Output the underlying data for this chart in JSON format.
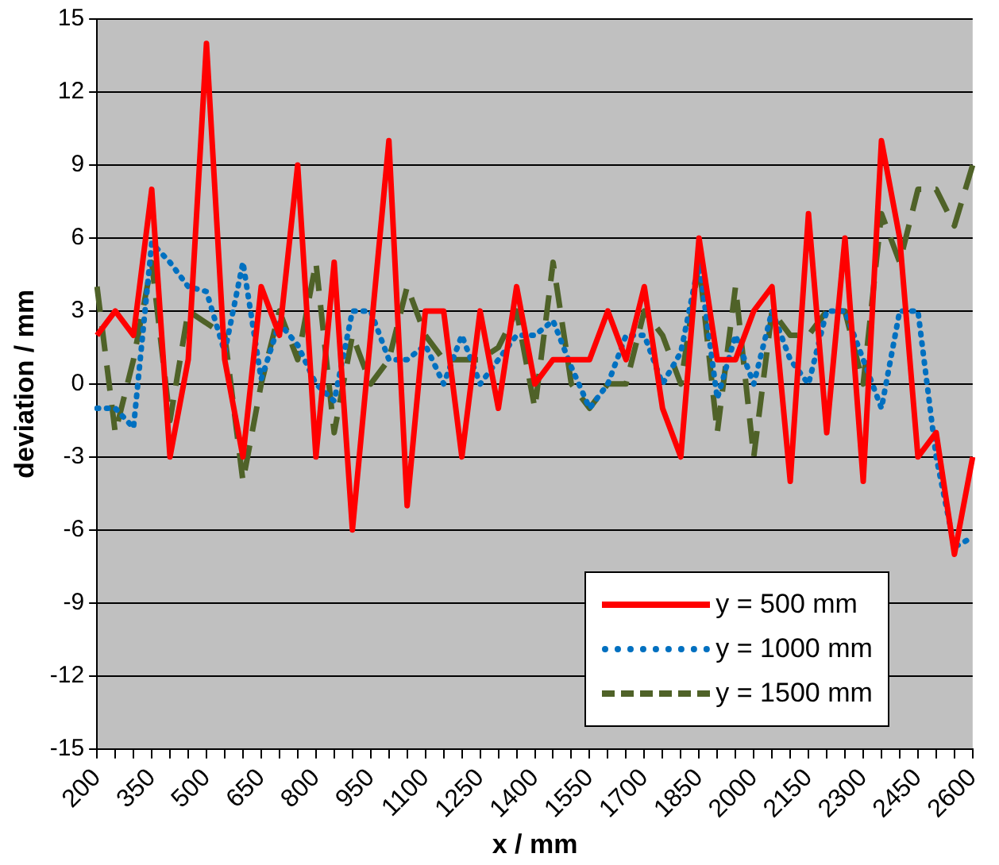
{
  "chart_data": {
    "type": "line",
    "xlabel": "x / mm",
    "ylabel": "deviation / mm",
    "categories": [
      "200",
      null,
      null,
      "350",
      null,
      null,
      "500",
      null,
      null,
      "650",
      null,
      null,
      "800",
      null,
      null,
      "950",
      null,
      null,
      "1100",
      null,
      null,
      "1250",
      null,
      null,
      "1400",
      null,
      null,
      "1550",
      null,
      null,
      "1700",
      null,
      null,
      "1850",
      null,
      null,
      "2000",
      null,
      null,
      "2150",
      null,
      null,
      "2300",
      null,
      null,
      "2450",
      null,
      null,
      "2600"
    ],
    "series": [
      {
        "name": "y = 500 mm",
        "color": "#ff0000",
        "line_style": "solid",
        "values": [
          2,
          3,
          2,
          8,
          -3,
          1,
          14,
          1,
          -3,
          4,
          2,
          9,
          -3,
          5,
          -6,
          2,
          10,
          -5,
          3,
          3,
          -3,
          3,
          -1,
          4,
          0,
          1,
          1,
          1,
          3,
          1,
          4,
          -1,
          -3,
          6,
          1,
          1,
          3,
          4,
          -4,
          7,
          -2,
          6,
          -4,
          10,
          6,
          -3,
          -2,
          -7,
          -3
        ]
      },
      {
        "name": "y = 1000 mm",
        "color": "#0070c0",
        "line_style": "dotted",
        "values": [
          -1,
          -1,
          -1.8,
          5.8,
          5,
          4,
          3.8,
          1.3,
          5,
          0.2,
          2.5,
          1.6,
          0,
          -0.7,
          3,
          3,
          1,
          1,
          1.6,
          0,
          2,
          0,
          1,
          2,
          2,
          2.6,
          0.7,
          -1,
          0,
          2,
          2,
          0,
          1.3,
          5,
          -0.6,
          2,
          0,
          3,
          1,
          0,
          3,
          3,
          1,
          -1,
          3,
          3,
          -3,
          -6.7,
          -6.3
        ]
      },
      {
        "name": "y = 1500 mm",
        "color": "#4f6228",
        "line_style": "dashed",
        "values": [
          4,
          -2,
          1,
          5,
          -1.5,
          3,
          2.5,
          2,
          -4,
          0,
          3,
          1,
          5,
          -2,
          2,
          0,
          1,
          4,
          2,
          1,
          1,
          1,
          1.5,
          3,
          -1,
          5,
          0,
          -1,
          0,
          0,
          3,
          2,
          0,
          5,
          -2,
          4,
          -3,
          3,
          2,
          2,
          3,
          3,
          0,
          7,
          5,
          8,
          8,
          6.5,
          9
        ]
      }
    ],
    "ylim": [
      -15,
      15
    ],
    "yticks": [
      -15,
      -12,
      -9,
      -6,
      -3,
      0,
      3,
      6,
      9,
      12,
      15
    ],
    "grid": "y",
    "legend": "bottom right",
    "marker": "none"
  }
}
